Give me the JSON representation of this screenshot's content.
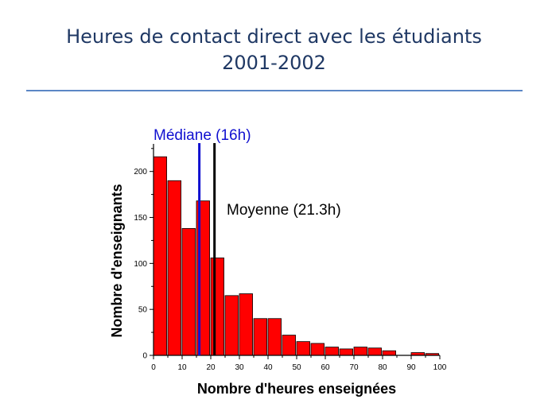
{
  "slide": {
    "title_line1": "Heures de contact direct avec les étudiants",
    "title_line2": "2001-2002"
  },
  "colors": {
    "title": "#1f3864",
    "rule": "#5b87c5",
    "bars": "#ff0000",
    "median": "#1010d0",
    "mean": "#000000"
  },
  "chart_data": {
    "type": "bar",
    "title": "",
    "xlabel": "Nombre d'heures enseignées",
    "ylabel": "Nombre d'enseignants",
    "xlim": [
      0,
      100
    ],
    "ylim": [
      0,
      230
    ],
    "xticks": [
      0,
      10,
      20,
      30,
      40,
      50,
      60,
      70,
      80,
      90,
      100
    ],
    "yticks": [
      0,
      50,
      100,
      150,
      200
    ],
    "bin_width": 4.6,
    "series": [
      {
        "bins_start": [
          0,
          5,
          10,
          15,
          20,
          25,
          30,
          35,
          40,
          45,
          50,
          55,
          60,
          65,
          70,
          75,
          80,
          85,
          90,
          95
        ],
        "values": [
          216,
          190,
          138,
          168,
          106,
          65,
          67,
          40,
          40,
          22,
          15,
          13,
          9,
          7,
          9,
          8,
          5,
          0,
          3,
          2
        ]
      }
    ],
    "reference_lines": [
      {
        "label": "Médiane (16h)",
        "x": 16,
        "color": "#1010d0"
      },
      {
        "label": "Moyenne (21.3h)",
        "x": 21.3,
        "color": "#000000"
      }
    ],
    "grid": false,
    "legend": "none"
  }
}
